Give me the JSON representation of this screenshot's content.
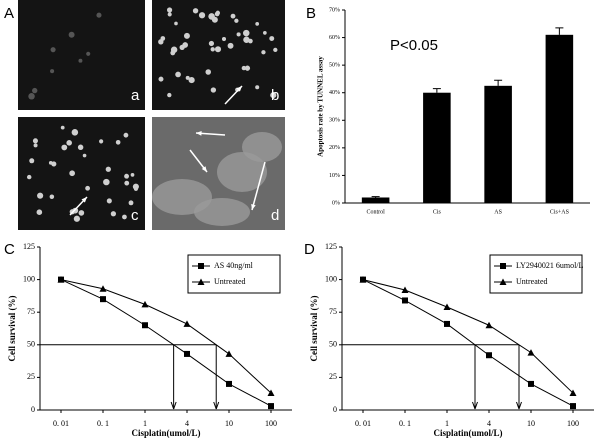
{
  "panel_labels": [
    "A",
    "B",
    "C",
    "D"
  ],
  "image_labels": [
    "a",
    "b",
    "c",
    "d"
  ],
  "chart_data": [
    {
      "type": "bar",
      "annotation": "P<0.05",
      "y_label": "Apoptosis rate by TUNNEL assay",
      "categories": [
        "Control",
        "Cis",
        "AS",
        "Cis+AS"
      ],
      "values": [
        2,
        40,
        42.5,
        61
      ],
      "errors": [
        0.3,
        1.5,
        2,
        2.5
      ],
      "color": "#000000",
      "ylim": [
        0,
        70
      ],
      "yticks": [
        {
          "value": 0,
          "label": "0%"
        },
        {
          "value": 10,
          "label": "10%"
        },
        {
          "value": 20,
          "label": "20%"
        },
        {
          "value": 30,
          "label": "30%"
        },
        {
          "value": 40,
          "label": "40%"
        },
        {
          "value": 50,
          "label": "50%"
        },
        {
          "value": 60,
          "label": "60%"
        },
        {
          "value": 70,
          "label": "70%"
        }
      ]
    },
    {
      "type": "line",
      "x_label": "Cisplatin(umol/L)",
      "y_label": "Cell survival (%)",
      "categories": [
        "0. 01",
        "0. 1",
        "1",
        "4",
        "10",
        "100"
      ],
      "series": [
        {
          "name": "AS 40ng/ml",
          "marker": "square",
          "color": "#000000",
          "values": [
            100,
            85,
            65,
            43,
            20,
            3
          ]
        },
        {
          "name": "Untreated",
          "marker": "triangle",
          "color": "#000000",
          "values": [
            100,
            93,
            81,
            66,
            43,
            13
          ]
        }
      ],
      "hline": 50,
      "ylim": [
        0,
        125
      ],
      "yticks": [
        0,
        25,
        50,
        75,
        100,
        125
      ],
      "legend": "upper right"
    },
    {
      "type": "line",
      "x_label": "Cisplatin(umol/L)",
      "y_label": "Cell survival (%)",
      "categories": [
        "0. 01",
        "0. 1",
        "1",
        "4",
        "10",
        "100"
      ],
      "series": [
        {
          "name": "LY2940021 6umol/L",
          "marker": "square",
          "color": "#000000",
          "values": [
            100,
            84,
            66,
            42,
            20,
            3
          ]
        },
        {
          "name": "Untreated",
          "marker": "triangle",
          "color": "#000000",
          "values": [
            100,
            92,
            79,
            65,
            44,
            13
          ]
        }
      ],
      "hline": 50,
      "ylim": [
        0,
        125
      ],
      "yticks": [
        0,
        25,
        50,
        75,
        100,
        125
      ],
      "legend": "upper right"
    }
  ]
}
